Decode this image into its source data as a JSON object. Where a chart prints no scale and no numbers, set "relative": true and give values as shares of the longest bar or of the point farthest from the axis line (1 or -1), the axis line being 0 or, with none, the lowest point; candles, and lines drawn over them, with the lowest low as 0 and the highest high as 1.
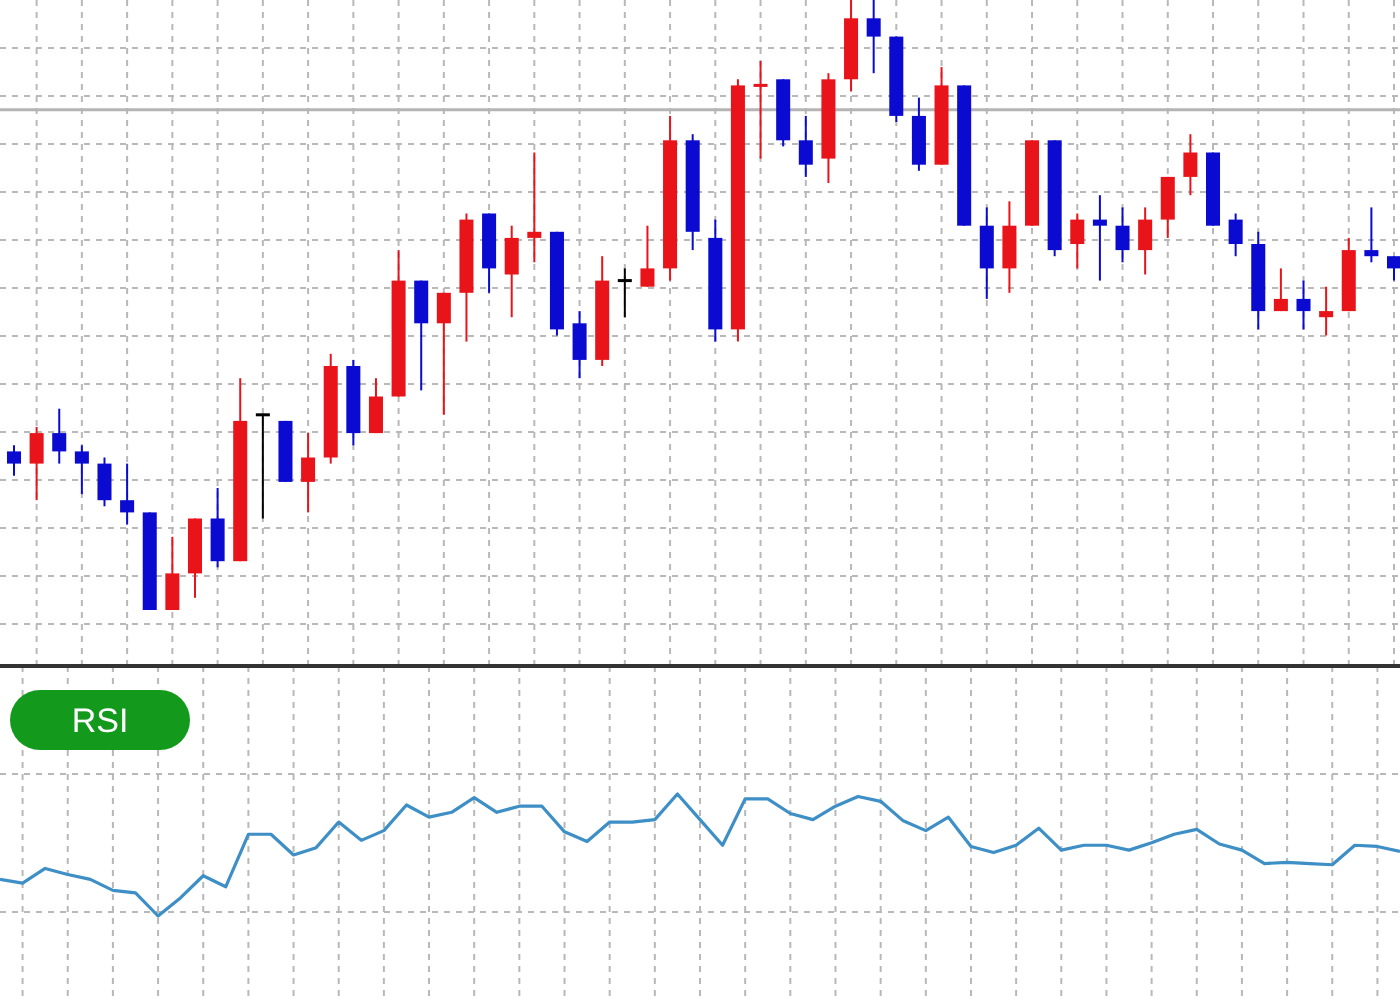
{
  "chart_data": [
    {
      "type": "candlestick",
      "relative": true,
      "grid": true,
      "categories": [
        null,
        null,
        null,
        null,
        null,
        null,
        null,
        null,
        null,
        null,
        null,
        null,
        null,
        null,
        null,
        null,
        null,
        null,
        null,
        null,
        null,
        null,
        null,
        null,
        null,
        null,
        null,
        null,
        null,
        null,
        null,
        null,
        null,
        null,
        null,
        null,
        null,
        null,
        null,
        null,
        null,
        null,
        null,
        null,
        null,
        null,
        null,
        null,
        null,
        null,
        null,
        null,
        null,
        null,
        null,
        null,
        null,
        null,
        null,
        null,
        null,
        null
      ],
      "ohlc": [
        [
          0.26,
          0.27,
          0.22,
          0.24
        ],
        [
          0.24,
          0.3,
          0.18,
          0.29
        ],
        [
          0.29,
          0.33,
          0.24,
          0.26
        ],
        [
          0.26,
          0.27,
          0.19,
          0.24
        ],
        [
          0.24,
          0.25,
          0.17,
          0.18
        ],
        [
          0.18,
          0.24,
          0.14,
          0.16
        ],
        [
          0.16,
          0.16,
          0,
          0.0
        ],
        [
          0.0,
          0.12,
          0,
          0.06
        ],
        [
          0.06,
          0.15,
          0.02,
          0.15
        ],
        [
          0.15,
          0.2,
          0.07,
          0.08
        ],
        [
          0.08,
          0.38,
          0.08,
          0.31
        ],
        [
          0.32,
          0.32,
          0.15,
          0.32
        ],
        [
          0.31,
          0.31,
          0.21,
          0.21
        ],
        [
          0.21,
          0.29,
          0.16,
          0.25
        ],
        [
          0.25,
          0.42,
          0.24,
          0.4
        ],
        [
          0.4,
          0.41,
          0.27,
          0.29
        ],
        [
          0.29,
          0.38,
          0.29,
          0.35
        ],
        [
          0.35,
          0.59,
          0.35,
          0.54
        ],
        [
          0.54,
          0.54,
          0.36,
          0.47
        ],
        [
          0.47,
          0.52,
          0.32,
          0.52
        ],
        [
          0.52,
          0.65,
          0.44,
          0.64
        ],
        [
          0.65,
          0.65,
          0.52,
          0.56
        ],
        [
          0.55,
          0.63,
          0.48,
          0.61
        ],
        [
          0.61,
          0.75,
          0.57,
          0.62
        ],
        [
          0.62,
          0.62,
          0.45,
          0.46
        ],
        [
          0.47,
          0.49,
          0.38,
          0.41
        ],
        [
          0.41,
          0.58,
          0.4,
          0.54
        ],
        [
          0.54,
          0.56,
          0.48,
          0.54
        ],
        [
          0.53,
          0.63,
          0.53,
          0.56
        ],
        [
          0.56,
          0.81,
          0.54,
          0.77
        ],
        [
          0.77,
          0.78,
          0.59,
          0.62
        ],
        [
          0.61,
          0.64,
          0.44,
          0.46
        ],
        [
          0.46,
          0.87,
          0.44,
          0.86
        ],
        [
          0.86,
          0.9,
          0.74,
          0.86
        ],
        [
          0.87,
          0.87,
          0.76,
          0.77
        ],
        [
          0.77,
          0.81,
          0.71,
          0.73
        ],
        [
          0.74,
          0.88,
          0.7,
          0.87
        ],
        [
          0.87,
          1,
          0.85,
          0.97
        ],
        [
          0.97,
          1,
          0.88,
          0.94
        ],
        [
          0.94,
          0.94,
          0.8,
          0.81
        ],
        [
          0.81,
          0.84,
          0.72,
          0.73
        ],
        [
          0.73,
          0.89,
          0.73,
          0.86
        ],
        [
          0.86,
          0.86,
          0.63,
          0.63
        ],
        [
          0.63,
          0.66,
          0.51,
          0.56
        ],
        [
          0.56,
          0.67,
          0.52,
          0.63
        ],
        [
          0.63,
          0.77,
          0.63,
          0.77
        ],
        [
          0.77,
          0.77,
          0.58,
          0.59
        ],
        [
          0.6,
          0.65,
          0.56,
          0.64
        ],
        [
          0.64,
          0.68,
          0.54,
          0.63
        ],
        [
          0.63,
          0.66,
          0.57,
          0.59
        ],
        [
          0.59,
          0.66,
          0.55,
          0.64
        ],
        [
          0.64,
          0.71,
          0.61,
          0.71
        ],
        [
          0.71,
          0.78,
          0.68,
          0.75
        ],
        [
          0.75,
          0.75,
          0.63,
          0.63
        ],
        [
          0.64,
          0.65,
          0.58,
          0.6
        ],
        [
          0.6,
          0.62,
          0.46,
          0.49
        ],
        [
          0.49,
          0.56,
          0.49,
          0.51
        ],
        [
          0.51,
          0.54,
          0.46,
          0.49
        ],
        [
          0.48,
          0.53,
          0.45,
          0.49
        ],
        [
          0.49,
          0.61,
          0.49,
          0.59
        ],
        [
          0.59,
          0.66,
          0.57,
          0.58
        ],
        [
          0.58,
          0.58,
          0.54,
          0.56
        ]
      ],
      "colors": [
        "#0a0ad0",
        "#e8141a",
        "#0a0ad0",
        "#0a0ad0",
        "#0a0ad0",
        "#0a0ad0",
        "#0a0ad0",
        "#e8141a",
        "#e8141a",
        "#0a0ad0",
        "#e8141a",
        "#000000",
        "#0a0ad0",
        "#e8141a",
        "#e8141a",
        "#0a0ad0",
        "#e8141a",
        "#e8141a",
        "#0a0ad0",
        "#e8141a",
        "#e8141a",
        "#0a0ad0",
        "#e8141a",
        "#e8141a",
        "#0a0ad0",
        "#0a0ad0",
        "#e8141a",
        "#000000",
        "#e8141a",
        "#e8141a",
        "#0a0ad0",
        "#0a0ad0",
        "#e8141a",
        "#e8141a",
        "#0a0ad0",
        "#0a0ad0",
        "#e8141a",
        "#e8141a",
        "#0a0ad0",
        "#0a0ad0",
        "#0a0ad0",
        "#e8141a",
        "#0a0ad0",
        "#0a0ad0",
        "#e8141a",
        "#e8141a",
        "#0a0ad0",
        "#e8141a",
        "#0a0ad0",
        "#0a0ad0",
        "#e8141a",
        "#e8141a",
        "#e8141a",
        "#0a0ad0",
        "#0a0ad0",
        "#0a0ad0",
        "#e8141a",
        "#0a0ad0",
        "#e8141a",
        "#e8141a",
        "#0a0ad0",
        "#0a0ad0"
      ],
      "ref_lines": [
        {
          "axis": "y",
          "value": 0.82,
          "color": "#b4b4b4"
        }
      ]
    },
    {
      "type": "line",
      "title": "RSI",
      "relative": true,
      "grid": true,
      "categories": [
        null,
        null,
        null,
        null,
        null,
        null,
        null,
        null,
        null,
        null,
        null,
        null,
        null,
        null,
        null,
        null,
        null,
        null,
        null,
        null,
        null,
        null,
        null,
        null,
        null,
        null,
        null,
        null,
        null,
        null,
        null,
        null,
        null,
        null,
        null,
        null,
        null,
        null,
        null,
        null,
        null,
        null,
        null,
        null,
        null,
        null,
        null,
        null,
        null,
        null,
        null,
        null,
        null,
        null,
        null,
        null,
        null,
        null,
        null,
        null,
        null,
        null,
        null
      ],
      "series": [
        {
          "color": "#3d8fc6",
          "values": [
            0.3,
            0.27,
            0.39,
            0.34,
            0.3,
            0.21,
            0.19,
            0,
            0.15,
            0.33,
            0.24,
            0.67,
            0.67,
            0.5,
            0.56,
            0.77,
            0.62,
            0.7,
            0.91,
            0.81,
            0.85,
            0.97,
            0.85,
            0.9,
            0.9,
            0.69,
            0.61,
            0.77,
            0.77,
            0.79,
            1,
            0.79,
            0.58,
            0.96,
            0.96,
            0.84,
            0.79,
            0.9,
            0.98,
            0.94,
            0.78,
            0.7,
            0.81,
            0.57,
            0.52,
            0.58,
            0.72,
            0.54,
            0.58,
            0.58,
            0.54,
            0.6,
            0.67,
            0.71,
            0.59,
            0.54,
            0.43,
            0.44,
            0.43,
            0.42,
            0.58,
            0.57,
            0.53
          ]
        }
      ]
    }
  ]
}
